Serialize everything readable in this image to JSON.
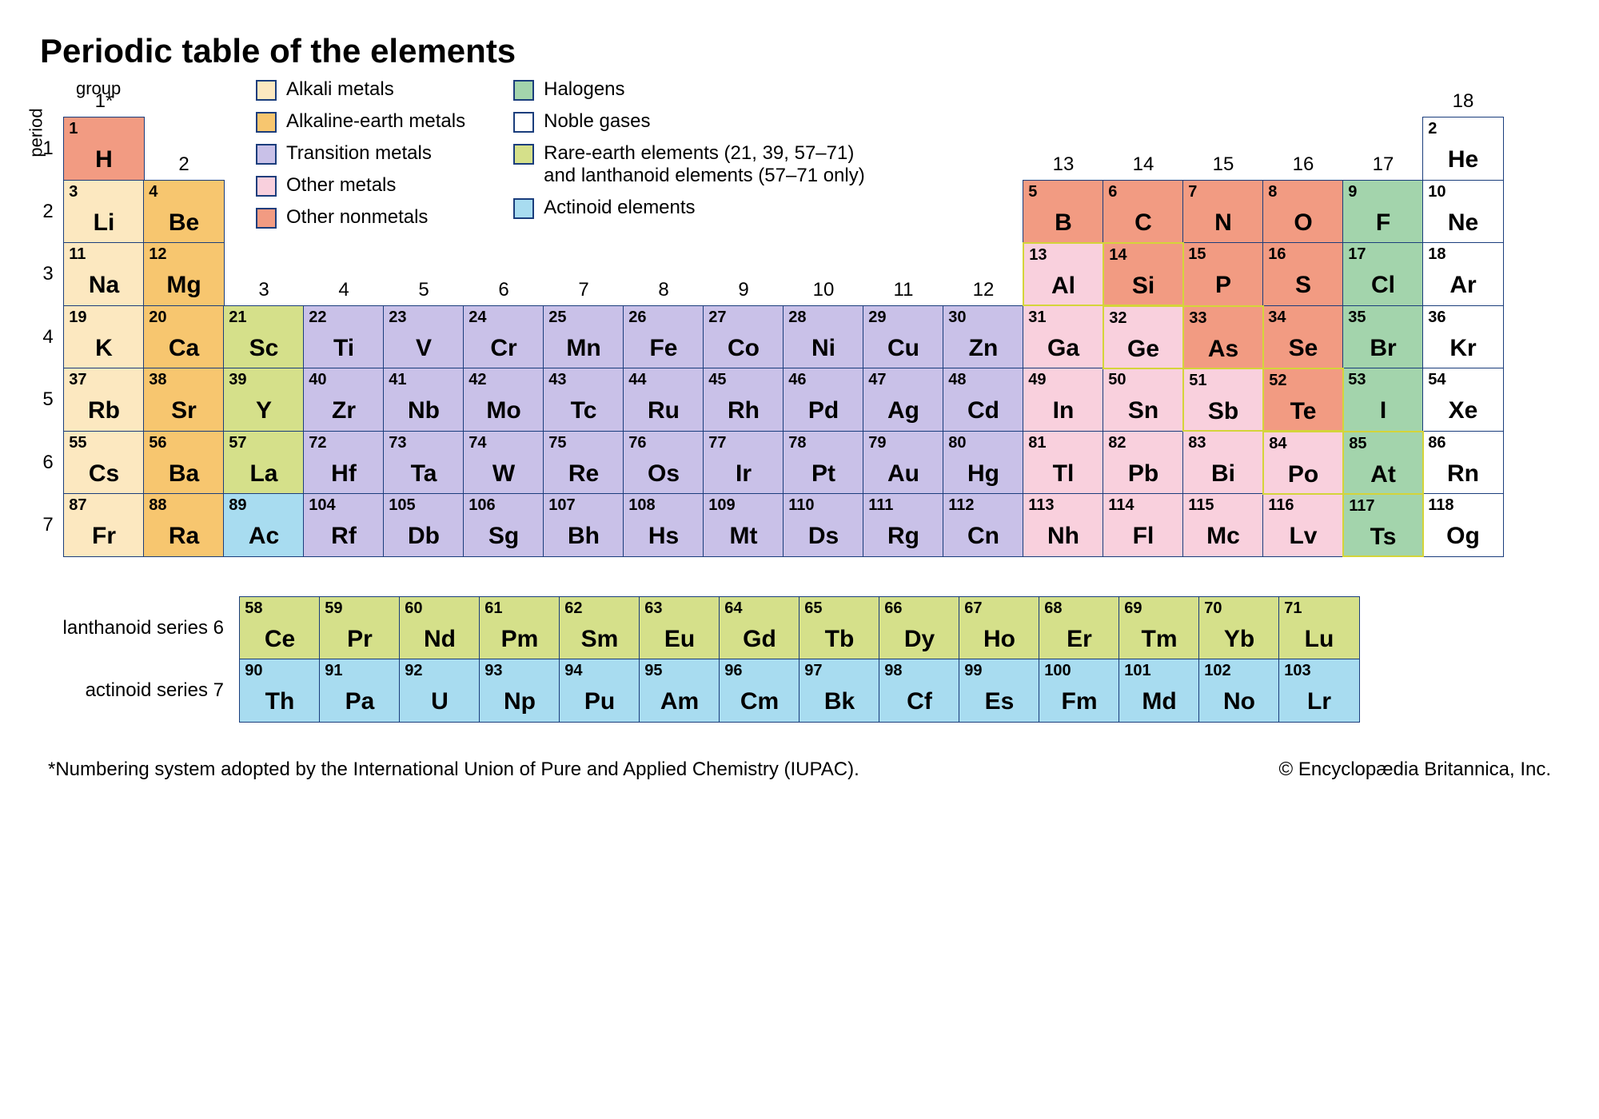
{
  "title": "Periodic table of the elements",
  "axis": {
    "period": "period",
    "group": "group",
    "group1": "1*"
  },
  "colors": {
    "border": "#1a3d7c",
    "metalloid_border": "#d4d43a",
    "alkali": "#fce8c0",
    "alkaline": "#f7c66f",
    "transition": "#c9c1e8",
    "other_metal": "#f9d0dd",
    "other_nonmetal": "#f29b82",
    "halogen": "#a3d4ac",
    "noble": "#ffffff",
    "rare_earth": "#d5e08a",
    "actinoid": "#a8dcf0",
    "background": "#ffffff",
    "text": "#000000"
  },
  "legend": {
    "col1": [
      {
        "key": "alkali",
        "label": "Alkali metals"
      },
      {
        "key": "alkaline",
        "label": "Alkaline-earth metals"
      },
      {
        "key": "transition",
        "label": "Transition metals"
      },
      {
        "key": "other_metal",
        "label": "Other metals"
      },
      {
        "key": "other_nonmetal",
        "label": "Other nonmetals"
      }
    ],
    "col2": [
      {
        "key": "halogen",
        "label": "Halogens"
      },
      {
        "key": "noble",
        "label": "Noble gases"
      },
      {
        "key": "rare_earth",
        "label": "Rare-earth elements (21, 39, 57–71)\nand lanthanoid elements (57–71 only)"
      },
      {
        "key": "actinoid",
        "label": "Actinoid elements"
      }
    ]
  },
  "groups": [
    1,
    2,
    3,
    4,
    5,
    6,
    7,
    8,
    9,
    10,
    11,
    12,
    13,
    14,
    15,
    16,
    17,
    18
  ],
  "group_row": {
    "1": 1,
    "2": 2,
    "3": 4,
    "4": 4,
    "5": 4,
    "6": 4,
    "7": 4,
    "8": 4,
    "9": 4,
    "10": 4,
    "11": 4,
    "12": 4,
    "13": 2,
    "14": 2,
    "15": 2,
    "16": 2,
    "17": 2,
    "18": 1
  },
  "periods": [
    1,
    2,
    3,
    4,
    5,
    6,
    7
  ],
  "elements": [
    {
      "n": 1,
      "s": "H",
      "p": 1,
      "g": 1,
      "c": "other_nonmetal"
    },
    {
      "n": 2,
      "s": "He",
      "p": 1,
      "g": 18,
      "c": "noble"
    },
    {
      "n": 3,
      "s": "Li",
      "p": 2,
      "g": 1,
      "c": "alkali"
    },
    {
      "n": 4,
      "s": "Be",
      "p": 2,
      "g": 2,
      "c": "alkaline"
    },
    {
      "n": 5,
      "s": "B",
      "p": 2,
      "g": 13,
      "c": "other_nonmetal"
    },
    {
      "n": 6,
      "s": "C",
      "p": 2,
      "g": 14,
      "c": "other_nonmetal"
    },
    {
      "n": 7,
      "s": "N",
      "p": 2,
      "g": 15,
      "c": "other_nonmetal"
    },
    {
      "n": 8,
      "s": "O",
      "p": 2,
      "g": 16,
      "c": "other_nonmetal"
    },
    {
      "n": 9,
      "s": "F",
      "p": 2,
      "g": 17,
      "c": "halogen"
    },
    {
      "n": 10,
      "s": "Ne",
      "p": 2,
      "g": 18,
      "c": "noble"
    },
    {
      "n": 11,
      "s": "Na",
      "p": 3,
      "g": 1,
      "c": "alkali"
    },
    {
      "n": 12,
      "s": "Mg",
      "p": 3,
      "g": 2,
      "c": "alkaline"
    },
    {
      "n": 13,
      "s": "Al",
      "p": 3,
      "g": 13,
      "c": "other_metal",
      "mb": true
    },
    {
      "n": 14,
      "s": "Si",
      "p": 3,
      "g": 14,
      "c": "other_nonmetal",
      "mb": true
    },
    {
      "n": 15,
      "s": "P",
      "p": 3,
      "g": 15,
      "c": "other_nonmetal"
    },
    {
      "n": 16,
      "s": "S",
      "p": 3,
      "g": 16,
      "c": "other_nonmetal"
    },
    {
      "n": 17,
      "s": "Cl",
      "p": 3,
      "g": 17,
      "c": "halogen"
    },
    {
      "n": 18,
      "s": "Ar",
      "p": 3,
      "g": 18,
      "c": "noble"
    },
    {
      "n": 19,
      "s": "K",
      "p": 4,
      "g": 1,
      "c": "alkali"
    },
    {
      "n": 20,
      "s": "Ca",
      "p": 4,
      "g": 2,
      "c": "alkaline"
    },
    {
      "n": 21,
      "s": "Sc",
      "p": 4,
      "g": 3,
      "c": "rare_earth"
    },
    {
      "n": 22,
      "s": "Ti",
      "p": 4,
      "g": 4,
      "c": "transition"
    },
    {
      "n": 23,
      "s": "V",
      "p": 4,
      "g": 5,
      "c": "transition"
    },
    {
      "n": 24,
      "s": "Cr",
      "p": 4,
      "g": 6,
      "c": "transition"
    },
    {
      "n": 25,
      "s": "Mn",
      "p": 4,
      "g": 7,
      "c": "transition"
    },
    {
      "n": 26,
      "s": "Fe",
      "p": 4,
      "g": 8,
      "c": "transition"
    },
    {
      "n": 27,
      "s": "Co",
      "p": 4,
      "g": 9,
      "c": "transition"
    },
    {
      "n": 28,
      "s": "Ni",
      "p": 4,
      "g": 10,
      "c": "transition"
    },
    {
      "n": 29,
      "s": "Cu",
      "p": 4,
      "g": 11,
      "c": "transition"
    },
    {
      "n": 30,
      "s": "Zn",
      "p": 4,
      "g": 12,
      "c": "transition"
    },
    {
      "n": 31,
      "s": "Ga",
      "p": 4,
      "g": 13,
      "c": "other_metal"
    },
    {
      "n": 32,
      "s": "Ge",
      "p": 4,
      "g": 14,
      "c": "other_metal",
      "mb": true
    },
    {
      "n": 33,
      "s": "As",
      "p": 4,
      "g": 15,
      "c": "other_nonmetal",
      "mb": true
    },
    {
      "n": 34,
      "s": "Se",
      "p": 4,
      "g": 16,
      "c": "other_nonmetal"
    },
    {
      "n": 35,
      "s": "Br",
      "p": 4,
      "g": 17,
      "c": "halogen"
    },
    {
      "n": 36,
      "s": "Kr",
      "p": 4,
      "g": 18,
      "c": "noble"
    },
    {
      "n": 37,
      "s": "Rb",
      "p": 5,
      "g": 1,
      "c": "alkali"
    },
    {
      "n": 38,
      "s": "Sr",
      "p": 5,
      "g": 2,
      "c": "alkaline"
    },
    {
      "n": 39,
      "s": "Y",
      "p": 5,
      "g": 3,
      "c": "rare_earth"
    },
    {
      "n": 40,
      "s": "Zr",
      "p": 5,
      "g": 4,
      "c": "transition"
    },
    {
      "n": 41,
      "s": "Nb",
      "p": 5,
      "g": 5,
      "c": "transition"
    },
    {
      "n": 42,
      "s": "Mo",
      "p": 5,
      "g": 6,
      "c": "transition"
    },
    {
      "n": 43,
      "s": "Tc",
      "p": 5,
      "g": 7,
      "c": "transition"
    },
    {
      "n": 44,
      "s": "Ru",
      "p": 5,
      "g": 8,
      "c": "transition"
    },
    {
      "n": 45,
      "s": "Rh",
      "p": 5,
      "g": 9,
      "c": "transition"
    },
    {
      "n": 46,
      "s": "Pd",
      "p": 5,
      "g": 10,
      "c": "transition"
    },
    {
      "n": 47,
      "s": "Ag",
      "p": 5,
      "g": 11,
      "c": "transition"
    },
    {
      "n": 48,
      "s": "Cd",
      "p": 5,
      "g": 12,
      "c": "transition"
    },
    {
      "n": 49,
      "s": "In",
      "p": 5,
      "g": 13,
      "c": "other_metal"
    },
    {
      "n": 50,
      "s": "Sn",
      "p": 5,
      "g": 14,
      "c": "other_metal"
    },
    {
      "n": 51,
      "s": "Sb",
      "p": 5,
      "g": 15,
      "c": "other_metal",
      "mb": true
    },
    {
      "n": 52,
      "s": "Te",
      "p": 5,
      "g": 16,
      "c": "other_nonmetal",
      "mb": true
    },
    {
      "n": 53,
      "s": "I",
      "p": 5,
      "g": 17,
      "c": "halogen"
    },
    {
      "n": 54,
      "s": "Xe",
      "p": 5,
      "g": 18,
      "c": "noble"
    },
    {
      "n": 55,
      "s": "Cs",
      "p": 6,
      "g": 1,
      "c": "alkali"
    },
    {
      "n": 56,
      "s": "Ba",
      "p": 6,
      "g": 2,
      "c": "alkaline"
    },
    {
      "n": 57,
      "s": "La",
      "p": 6,
      "g": 3,
      "c": "rare_earth"
    },
    {
      "n": 72,
      "s": "Hf",
      "p": 6,
      "g": 4,
      "c": "transition"
    },
    {
      "n": 73,
      "s": "Ta",
      "p": 6,
      "g": 5,
      "c": "transition"
    },
    {
      "n": 74,
      "s": "W",
      "p": 6,
      "g": 6,
      "c": "transition"
    },
    {
      "n": 75,
      "s": "Re",
      "p": 6,
      "g": 7,
      "c": "transition"
    },
    {
      "n": 76,
      "s": "Os",
      "p": 6,
      "g": 8,
      "c": "transition"
    },
    {
      "n": 77,
      "s": "Ir",
      "p": 6,
      "g": 9,
      "c": "transition"
    },
    {
      "n": 78,
      "s": "Pt",
      "p": 6,
      "g": 10,
      "c": "transition"
    },
    {
      "n": 79,
      "s": "Au",
      "p": 6,
      "g": 11,
      "c": "transition"
    },
    {
      "n": 80,
      "s": "Hg",
      "p": 6,
      "g": 12,
      "c": "transition"
    },
    {
      "n": 81,
      "s": "Tl",
      "p": 6,
      "g": 13,
      "c": "other_metal"
    },
    {
      "n": 82,
      "s": "Pb",
      "p": 6,
      "g": 14,
      "c": "other_metal"
    },
    {
      "n": 83,
      "s": "Bi",
      "p": 6,
      "g": 15,
      "c": "other_metal"
    },
    {
      "n": 84,
      "s": "Po",
      "p": 6,
      "g": 16,
      "c": "other_metal",
      "mb": true
    },
    {
      "n": 85,
      "s": "At",
      "p": 6,
      "g": 17,
      "c": "halogen",
      "mb": true
    },
    {
      "n": 86,
      "s": "Rn",
      "p": 6,
      "g": 18,
      "c": "noble"
    },
    {
      "n": 87,
      "s": "Fr",
      "p": 7,
      "g": 1,
      "c": "alkali"
    },
    {
      "n": 88,
      "s": "Ra",
      "p": 7,
      "g": 2,
      "c": "alkaline"
    },
    {
      "n": 89,
      "s": "Ac",
      "p": 7,
      "g": 3,
      "c": "actinoid"
    },
    {
      "n": 104,
      "s": "Rf",
      "p": 7,
      "g": 4,
      "c": "transition"
    },
    {
      "n": 105,
      "s": "Db",
      "p": 7,
      "g": 5,
      "c": "transition"
    },
    {
      "n": 106,
      "s": "Sg",
      "p": 7,
      "g": 6,
      "c": "transition"
    },
    {
      "n": 107,
      "s": "Bh",
      "p": 7,
      "g": 7,
      "c": "transition"
    },
    {
      "n": 108,
      "s": "Hs",
      "p": 7,
      "g": 8,
      "c": "transition"
    },
    {
      "n": 109,
      "s": "Mt",
      "p": 7,
      "g": 9,
      "c": "transition"
    },
    {
      "n": 110,
      "s": "Ds",
      "p": 7,
      "g": 10,
      "c": "transition"
    },
    {
      "n": 111,
      "s": "Rg",
      "p": 7,
      "g": 11,
      "c": "transition"
    },
    {
      "n": 112,
      "s": "Cn",
      "p": 7,
      "g": 12,
      "c": "transition"
    },
    {
      "n": 113,
      "s": "Nh",
      "p": 7,
      "g": 13,
      "c": "other_metal"
    },
    {
      "n": 114,
      "s": "Fl",
      "p": 7,
      "g": 14,
      "c": "other_metal"
    },
    {
      "n": 115,
      "s": "Mc",
      "p": 7,
      "g": 15,
      "c": "other_metal"
    },
    {
      "n": 116,
      "s": "Lv",
      "p": 7,
      "g": 16,
      "c": "other_metal"
    },
    {
      "n": 117,
      "s": "Ts",
      "p": 7,
      "g": 17,
      "c": "halogen",
      "mb": true
    },
    {
      "n": 118,
      "s": "Og",
      "p": 7,
      "g": 18,
      "c": "noble"
    }
  ],
  "lanthanoids_label": "lanthanoid series  6",
  "lanthanoids": [
    {
      "n": 58,
      "s": "Ce"
    },
    {
      "n": 59,
      "s": "Pr"
    },
    {
      "n": 60,
      "s": "Nd"
    },
    {
      "n": 61,
      "s": "Pm"
    },
    {
      "n": 62,
      "s": "Sm"
    },
    {
      "n": 63,
      "s": "Eu"
    },
    {
      "n": 64,
      "s": "Gd"
    },
    {
      "n": 65,
      "s": "Tb"
    },
    {
      "n": 66,
      "s": "Dy"
    },
    {
      "n": 67,
      "s": "Ho"
    },
    {
      "n": 68,
      "s": "Er"
    },
    {
      "n": 69,
      "s": "Tm"
    },
    {
      "n": 70,
      "s": "Yb"
    },
    {
      "n": 71,
      "s": "Lu"
    }
  ],
  "actinoids_label": "actinoid series  7",
  "actinoids": [
    {
      "n": 90,
      "s": "Th"
    },
    {
      "n": 91,
      "s": "Pa"
    },
    {
      "n": 92,
      "s": "U"
    },
    {
      "n": 93,
      "s": "Np"
    },
    {
      "n": 94,
      "s": "Pu"
    },
    {
      "n": 95,
      "s": "Am"
    },
    {
      "n": 96,
      "s": "Cm"
    },
    {
      "n": 97,
      "s": "Bk"
    },
    {
      "n": 98,
      "s": "Cf"
    },
    {
      "n": 99,
      "s": "Es"
    },
    {
      "n": 100,
      "s": "Fm"
    },
    {
      "n": 101,
      "s": "Md"
    },
    {
      "n": 102,
      "s": "No"
    },
    {
      "n": 103,
      "s": "Lr"
    }
  ],
  "footnote": "*Numbering system adopted by the International Union of Pure and Applied Chemistry (IUPAC).",
  "copyright": "© Encyclopædia Britannica, Inc."
}
